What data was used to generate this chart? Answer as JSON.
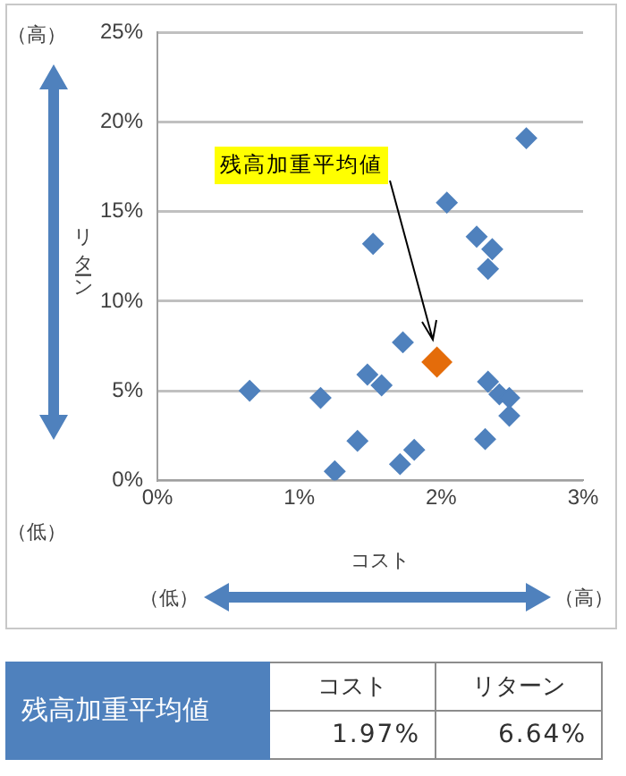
{
  "chart_data": {
    "type": "scatter",
    "xlabel": "コスト",
    "ylabel": "リターン",
    "xlim": [
      0,
      3
    ],
    "xticks": [
      {
        "value": 0,
        "label": "0%"
      },
      {
        "value": 1,
        "label": "1%"
      },
      {
        "value": 2,
        "label": "2%"
      },
      {
        "value": 3,
        "label": "3%"
      }
    ],
    "ylim": [
      0,
      25
    ],
    "yticks": [
      {
        "value": 0,
        "label": "0%"
      },
      {
        "value": 5,
        "label": "5%"
      },
      {
        "value": 10,
        "label": "10%"
      },
      {
        "value": 15,
        "label": "15%"
      },
      {
        "value": 20,
        "label": "20%"
      },
      {
        "value": 25,
        "label": "25%"
      }
    ],
    "grid": "y",
    "legend": false,
    "marker": "diamond",
    "series": [
      {
        "color": "#4f81bd",
        "x": [
          2.6,
          2.04,
          1.52,
          2.25,
          2.36,
          2.33,
          1.73,
          1.48,
          1.58,
          0.65,
          1.15,
          2.33,
          2.41,
          2.48,
          2.48,
          1.41,
          2.31,
          1.81,
          1.71,
          1.25
        ],
        "values": [
          19.1,
          15.5,
          13.2,
          13.6,
          12.9,
          11.8,
          7.7,
          5.9,
          5.3,
          5.0,
          4.6,
          5.5,
          4.8,
          4.6,
          3.6,
          2.2,
          2.3,
          1.7,
          0.9,
          0.5
        ]
      },
      {
        "color": "#e46c0a",
        "x": [
          1.97
        ],
        "values": [
          6.6
        ]
      }
    ],
    "annotations": [
      "（高）",
      "（低）",
      "（低）",
      "（高）",
      "残高加重平均値",
      "残高加重平均値",
      "コスト",
      "リターン",
      "1.97%",
      "6.64%"
    ]
  }
}
